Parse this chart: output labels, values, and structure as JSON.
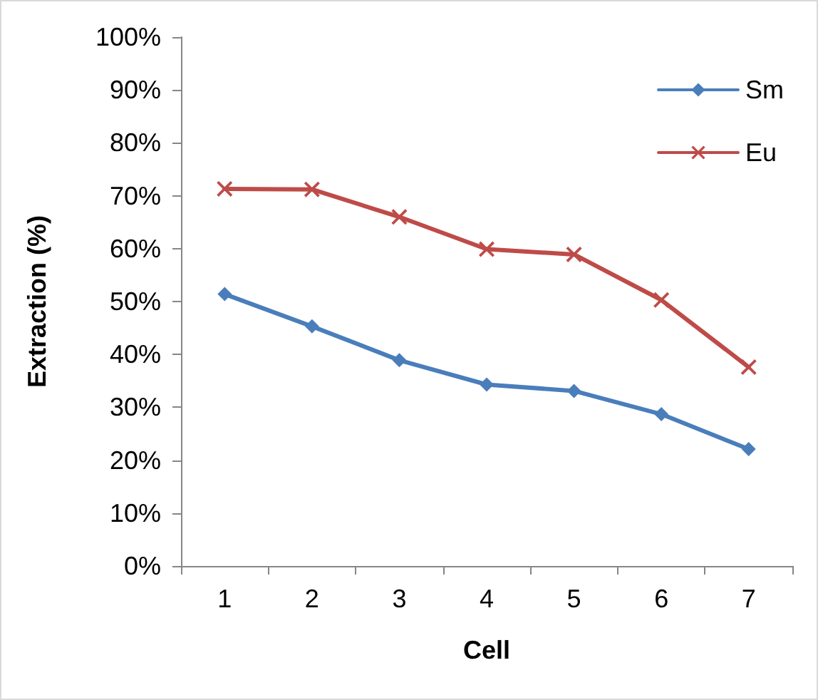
{
  "chart_data": {
    "type": "line",
    "xlabel": "Cell",
    "ylabel": "Extraction (%)",
    "categories": [
      "1",
      "2",
      "3",
      "4",
      "5",
      "6",
      "7"
    ],
    "series": [
      {
        "name": "Sm",
        "color": "#4a7ebb",
        "marker": "diamond",
        "values": [
          51.4,
          45.3,
          38.9,
          34.3,
          33.1,
          28.7,
          22.1
        ]
      },
      {
        "name": "Eu",
        "color": "#be4b48",
        "marker": "cross",
        "values": [
          71.3,
          71.2,
          66.0,
          59.9,
          58.9,
          50.3,
          37.6
        ]
      }
    ],
    "ylim": [
      0,
      100
    ],
    "yticks": [
      {
        "value": 0,
        "label": "0%"
      },
      {
        "value": 10,
        "label": "10%"
      },
      {
        "value": 20,
        "label": "20%"
      },
      {
        "value": 30,
        "label": "30%"
      },
      {
        "value": 40,
        "label": "40%"
      },
      {
        "value": 50,
        "label": "50%"
      },
      {
        "value": 60,
        "label": "60%"
      },
      {
        "value": 70,
        "label": "70%"
      },
      {
        "value": 80,
        "label": "80%"
      },
      {
        "value": 90,
        "label": "90%"
      },
      {
        "value": 100,
        "label": "100%"
      }
    ],
    "grid": false,
    "legend": "top right"
  }
}
